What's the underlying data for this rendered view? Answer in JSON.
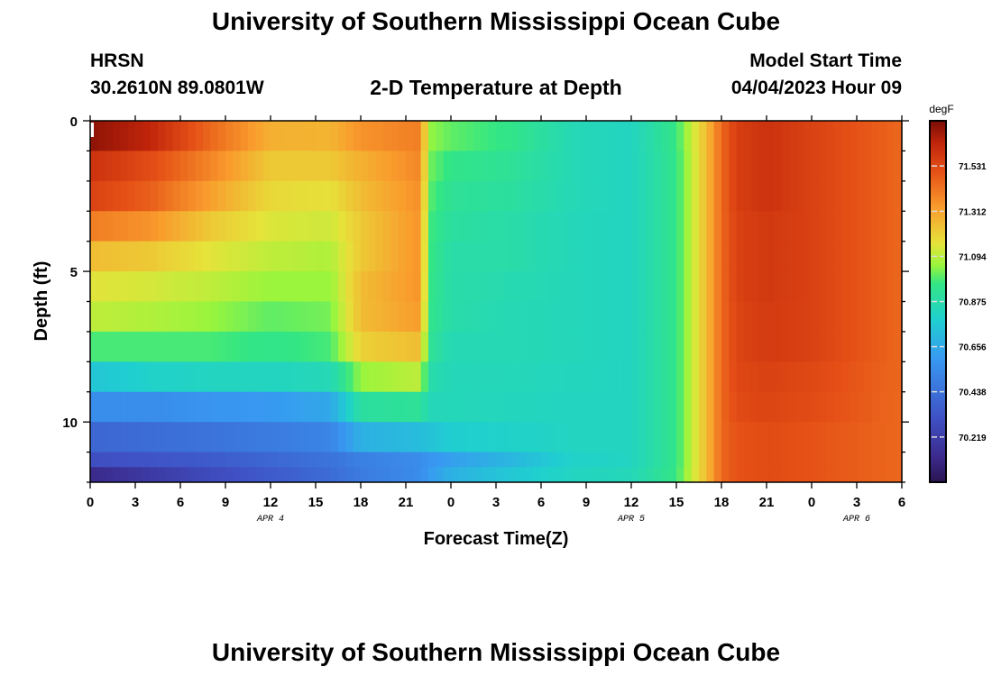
{
  "page": {
    "title": "University of Southern Mississippi Ocean Cube",
    "footer_title": "University of Southern Mississippi Ocean Cube",
    "station": "HRSN",
    "coords": "30.2610N  89.0801W",
    "subtitle": "2-D Temperature at Depth",
    "model_label": "Model Start Time",
    "model_time": "04/04/2023 Hour 09"
  },
  "chart_data": {
    "type": "heatmap",
    "title": "2-D Temperature at Depth",
    "xlabel": "Forecast Time(Z)",
    "ylabel": "Depth (ft)",
    "units": "degF",
    "x_hours": [
      0,
      54
    ],
    "ylim": [
      0,
      12
    ],
    "x_ticks": [
      "0",
      "3",
      "6",
      "9",
      "12",
      "15",
      "18",
      "21",
      "0",
      "3",
      "6",
      "9",
      "12",
      "15",
      "18",
      "21",
      "0",
      "3",
      "6"
    ],
    "y_ticks": [
      0,
      5,
      10
    ],
    "date_labels": [
      {
        "text": "APR 4",
        "hour": 12
      },
      {
        "text": "APR 5",
        "hour": 36
      },
      {
        "text": "APR 6",
        "hour": 51
      }
    ],
    "colorbar": {
      "min": 70.0,
      "max": 71.75,
      "ticks": [
        "71.531",
        "71.312",
        "71.094",
        "70.875",
        "70.656",
        "70.438",
        "70.219"
      ],
      "tick_values": [
        71.531,
        71.312,
        71.094,
        70.875,
        70.656,
        70.438,
        70.219
      ]
    },
    "depth_layers_ft": [
      0.5,
      1.5,
      2.5,
      3.5,
      4.5,
      5.5,
      6.5,
      7.5,
      8.5,
      9.5,
      10.5,
      11.5
    ],
    "time_keys_hours": [
      0,
      4,
      8,
      12,
      16,
      18,
      22,
      22.5,
      24,
      28,
      32,
      36,
      39,
      41,
      42,
      43,
      45,
      48,
      54
    ],
    "temperature_degF": [
      [
        71.72,
        71.64,
        71.45,
        71.28,
        71.27,
        71.35,
        71.4,
        71.05,
        71.0,
        70.95,
        70.85,
        70.82,
        70.96,
        71.25,
        71.45,
        71.56,
        71.6,
        71.55,
        71.45
      ],
      [
        71.6,
        71.52,
        71.38,
        71.22,
        71.22,
        71.28,
        71.38,
        71.02,
        70.95,
        70.92,
        70.85,
        70.82,
        70.95,
        71.25,
        71.45,
        71.56,
        71.6,
        71.55,
        71.45
      ],
      [
        71.55,
        71.47,
        71.32,
        71.18,
        71.16,
        71.25,
        71.36,
        71.0,
        70.92,
        70.9,
        70.85,
        70.82,
        70.95,
        71.25,
        71.45,
        71.56,
        71.6,
        71.55,
        71.45
      ],
      [
        71.4,
        71.35,
        71.22,
        71.14,
        71.12,
        71.22,
        71.35,
        70.98,
        70.9,
        70.88,
        70.84,
        70.82,
        70.95,
        71.25,
        71.45,
        71.55,
        71.58,
        71.55,
        71.45
      ],
      [
        71.25,
        71.22,
        71.15,
        71.1,
        71.08,
        71.22,
        71.35,
        70.97,
        70.88,
        70.88,
        70.84,
        70.82,
        70.95,
        71.25,
        71.45,
        71.55,
        71.58,
        71.55,
        71.45
      ],
      [
        71.15,
        71.13,
        71.1,
        71.05,
        71.05,
        71.25,
        71.35,
        70.96,
        70.88,
        70.86,
        70.84,
        70.82,
        70.95,
        71.25,
        71.45,
        71.55,
        71.58,
        71.55,
        71.45
      ],
      [
        71.1,
        71.08,
        71.05,
        71.0,
        71.02,
        71.25,
        71.33,
        70.95,
        70.88,
        70.85,
        70.84,
        70.82,
        70.95,
        71.25,
        71.45,
        71.54,
        71.57,
        71.55,
        71.45
      ],
      [
        70.98,
        70.98,
        70.98,
        70.95,
        70.98,
        71.2,
        71.25,
        70.93,
        70.85,
        70.85,
        70.84,
        70.82,
        70.95,
        71.25,
        71.45,
        71.54,
        71.57,
        71.55,
        71.45
      ],
      [
        70.75,
        70.8,
        70.82,
        70.82,
        70.85,
        71.05,
        71.1,
        70.88,
        70.84,
        70.84,
        70.83,
        70.82,
        70.95,
        71.25,
        71.45,
        71.53,
        71.55,
        71.53,
        71.45
      ],
      [
        70.55,
        70.55,
        70.58,
        70.6,
        70.65,
        70.9,
        70.92,
        70.84,
        70.84,
        70.83,
        70.82,
        70.82,
        70.95,
        71.25,
        71.45,
        71.52,
        71.54,
        71.52,
        71.45
      ],
      [
        70.4,
        70.42,
        70.45,
        70.48,
        70.52,
        70.68,
        70.72,
        70.74,
        70.78,
        70.8,
        70.82,
        70.82,
        70.95,
        71.25,
        71.45,
        71.5,
        71.52,
        71.5,
        71.45
      ],
      [
        70.3,
        70.32,
        70.35,
        70.4,
        70.45,
        70.5,
        70.55,
        70.58,
        70.62,
        70.7,
        70.8,
        70.82,
        70.95,
        71.25,
        71.45,
        71.5,
        71.52,
        71.5,
        71.45
      ]
    ],
    "bottom_strip_degF": [
      70.12,
      70.2,
      70.28,
      70.35,
      70.42,
      70.48,
      70.55,
      70.6,
      70.68,
      70.76,
      70.82,
      70.84,
      70.96,
      71.25,
      71.45,
      71.5,
      71.52,
      71.5,
      71.45
    ]
  }
}
